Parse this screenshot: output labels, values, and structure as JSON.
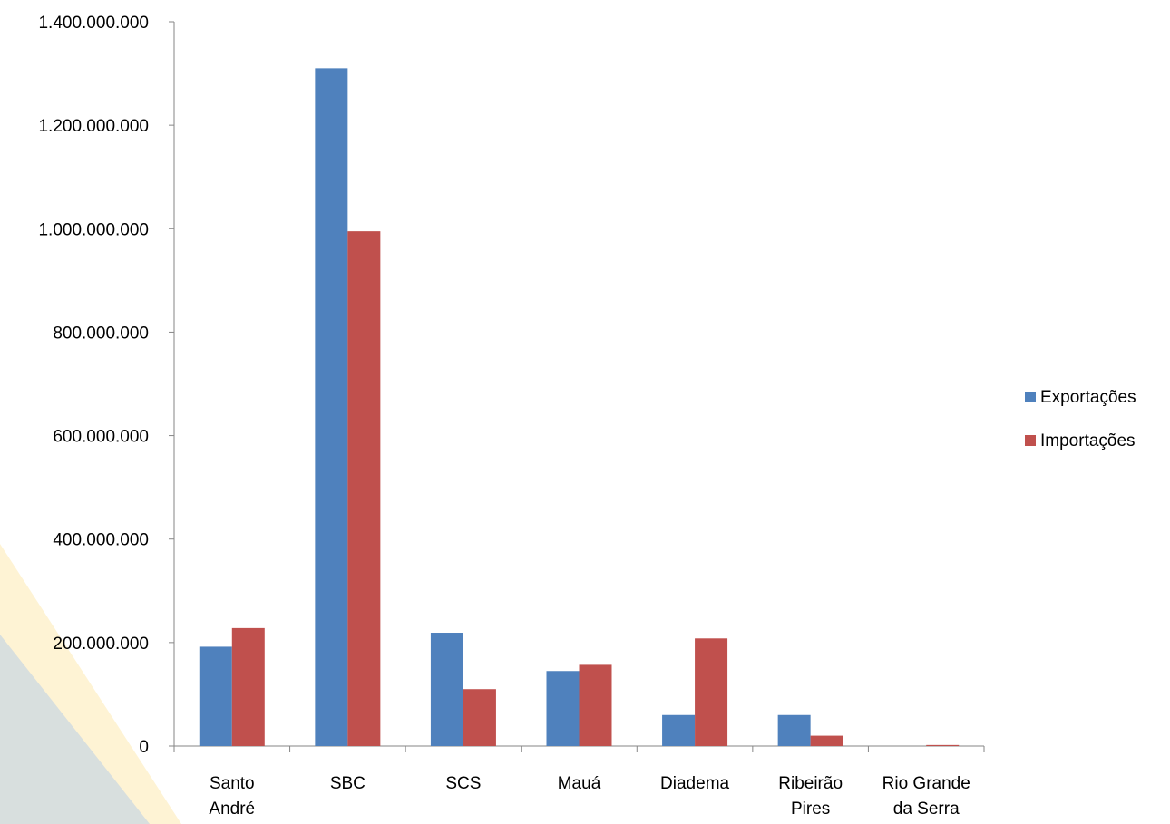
{
  "chart_data": {
    "type": "bar",
    "categories": [
      [
        "Santo",
        "André"
      ],
      [
        "SBC"
      ],
      [
        "SCS"
      ],
      [
        "Mauá"
      ],
      [
        "Diadema"
      ],
      [
        "Ribeirão",
        "Pires"
      ],
      [
        "Rio Grande",
        "da Serra"
      ]
    ],
    "series": [
      {
        "name": "Exportações",
        "color": "#4F81BD",
        "values": [
          192000000,
          1310000000,
          219000000,
          145000000,
          60000000,
          60000000,
          0
        ]
      },
      {
        "name": "Importações",
        "color": "#C0504D",
        "values": [
          228000000,
          995000000,
          110000000,
          157000000,
          208000000,
          20000000,
          2000000
        ]
      }
    ],
    "ylim": [
      0,
      1400000000
    ],
    "yticks": [
      "0",
      "200.000.000",
      "400.000.000",
      "600.000.000",
      "800.000.000",
      "1.000.000.000",
      "1.200.000.000",
      "1.400.000.000"
    ],
    "ytick_values": [
      0,
      200000000,
      400000000,
      600000000,
      800000000,
      1000000000,
      1200000000,
      1400000000
    ],
    "grid": false,
    "legend_position": "right",
    "title": "",
    "xlabel": "",
    "ylabel": ""
  }
}
